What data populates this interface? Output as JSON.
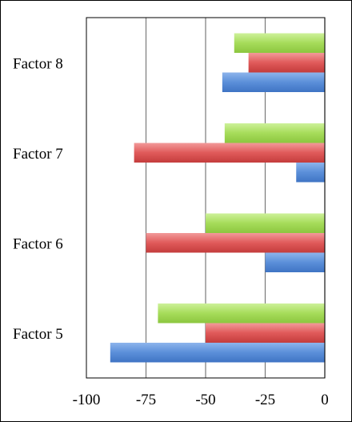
{
  "chart_data": {
    "type": "bar",
    "orientation": "horizontal",
    "categories": [
      "Factor 5",
      "Factor 6",
      "Factor 7",
      "Factor 8"
    ],
    "series": [
      {
        "color": "#5b8fd9",
        "values": [
          -90,
          -25,
          -12,
          -43
        ]
      },
      {
        "color": "#e05a5a",
        "values": [
          -50,
          -75,
          -80,
          -32
        ]
      },
      {
        "color": "#a6dc5a",
        "values": [
          -70,
          -50,
          -42,
          -38
        ]
      }
    ],
    "xlim": [
      -100,
      0
    ],
    "xticks": [
      "-100",
      "-75",
      "-50",
      "-25",
      "0"
    ],
    "xtick_values": [
      -100,
      -75,
      -50,
      -25,
      0
    ],
    "grid": true,
    "legend": "none"
  }
}
